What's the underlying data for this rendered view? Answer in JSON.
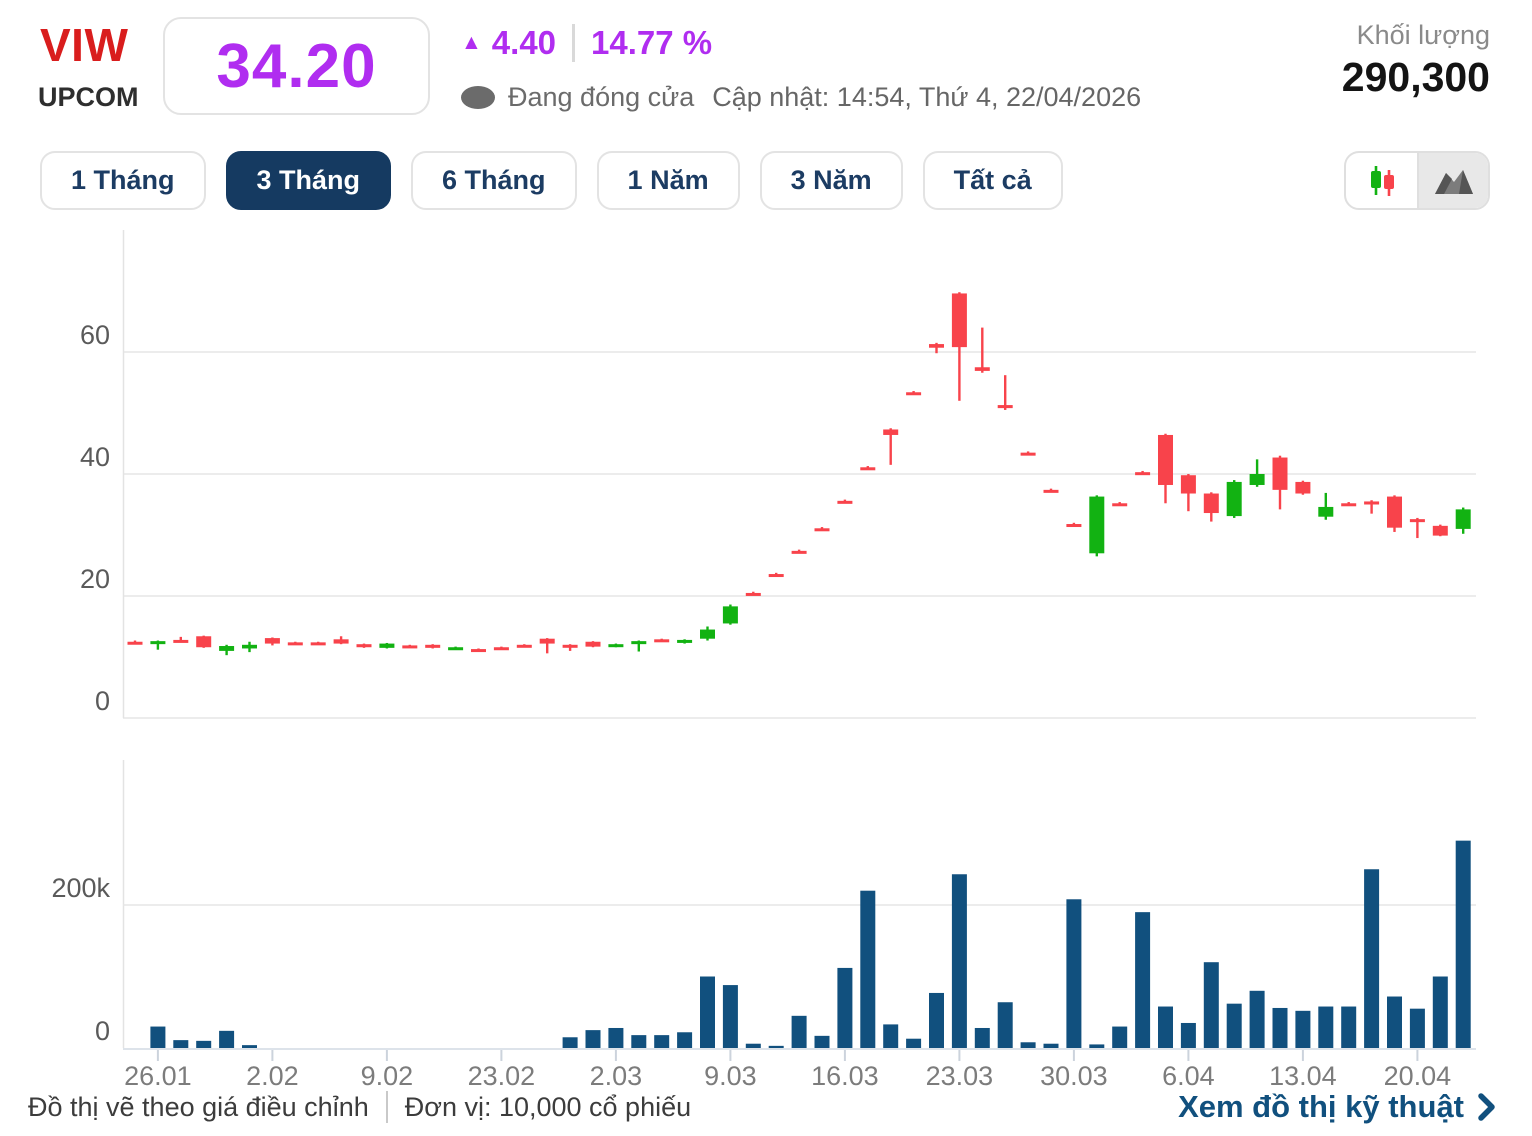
{
  "header": {
    "symbol": "VIW",
    "exchange": "UPCOM",
    "price": "34.20",
    "change_arrow": "▲",
    "change_value": "4.40",
    "change_percent": "14.77 %",
    "market_status": "Đang đóng cửa",
    "updated": "Cập nhật: 14:54, Thứ 4, 22/04/2026",
    "volume_label": "Khối lượng",
    "volume_value": "290,300"
  },
  "time_ranges": [
    {
      "label": "1 Tháng",
      "selected": false
    },
    {
      "label": "3 Tháng",
      "selected": true
    },
    {
      "label": "6 Tháng",
      "selected": false
    },
    {
      "label": "1 Năm",
      "selected": false
    },
    {
      "label": "3 Năm",
      "selected": false
    },
    {
      "label": "Tất cả",
      "selected": false
    }
  ],
  "footer": {
    "note": "Đồ thị vẽ theo giá điều chỉnh",
    "unit": "Đơn vị: 10,000 cổ phiếu",
    "link": "Xem đồ thị kỹ thuật"
  },
  "colors": {
    "up_green": "#12b212",
    "down_red": "#f8434b",
    "volume_bar": "#11507e",
    "accent_purple": "#b02df0",
    "brand_red": "#d91d1d",
    "navy": "#1c3c63",
    "grid": "#e6e6e6"
  },
  "chart_data": {
    "type": "candlestick+volume",
    "title": "VIW 3 Tháng price chart",
    "price_axis": {
      "ticks": [
        0,
        20,
        40,
        60
      ],
      "ylim": [
        0,
        80
      ]
    },
    "volume_axis": {
      "ticks": [
        {
          "v": 0,
          "label": "0"
        },
        {
          "v": 200,
          "label": "200k"
        }
      ],
      "unit": "k shares"
    },
    "x_ticks": [
      {
        "i": 1,
        "label": "26.01"
      },
      {
        "i": 6,
        "label": "2.02"
      },
      {
        "i": 11,
        "label": "9.02"
      },
      {
        "i": 16,
        "label": "23.02"
      },
      {
        "i": 21,
        "label": "2.03"
      },
      {
        "i": 26,
        "label": "9.03"
      },
      {
        "i": 31,
        "label": "16.03"
      },
      {
        "i": 36,
        "label": "23.03"
      },
      {
        "i": 41,
        "label": "30.03"
      },
      {
        "i": 46,
        "label": "6.04"
      },
      {
        "i": 51,
        "label": "13.04"
      },
      {
        "i": 56,
        "label": "20.04"
      }
    ],
    "candles": [
      [
        12.5,
        12.7,
        12.4,
        12.4
      ],
      [
        12.3,
        12.7,
        11.2,
        12.6
      ],
      [
        12.8,
        13.3,
        12.5,
        12.6
      ],
      [
        13.4,
        13.5,
        11.5,
        11.6
      ],
      [
        11.0,
        12.0,
        10.3,
        11.8
      ],
      [
        11.4,
        12.5,
        10.8,
        12.0
      ],
      [
        13.1,
        13.2,
        11.9,
        12.2
      ],
      [
        12.4,
        12.5,
        12.3,
        12.3
      ],
      [
        12.4,
        12.5,
        12.3,
        12.3
      ],
      [
        12.9,
        13.4,
        12.1,
        12.2
      ],
      [
        12.1,
        12.2,
        11.5,
        11.6
      ],
      [
        11.5,
        12.3,
        11.4,
        12.2
      ],
      [
        11.9,
        12.0,
        11.8,
        11.8
      ],
      [
        12.0,
        12.1,
        11.4,
        11.5
      ],
      [
        11.4,
        11.7,
        11.3,
        11.6
      ],
      [
        11.3,
        11.4,
        11.2,
        11.2
      ],
      [
        11.6,
        11.7,
        11.5,
        11.5
      ],
      [
        12.0,
        12.1,
        11.9,
        11.9
      ],
      [
        13.0,
        13.1,
        10.6,
        12.2
      ],
      [
        12.0,
        12.1,
        11.0,
        11.8
      ],
      [
        12.5,
        12.6,
        11.6,
        11.7
      ],
      [
        11.7,
        12.2,
        11.6,
        12.1
      ],
      [
        12.3,
        12.7,
        10.9,
        12.6
      ],
      [
        12.9,
        13.0,
        12.7,
        12.7
      ],
      [
        12.6,
        12.9,
        12.2,
        12.8
      ],
      [
        13.0,
        15.0,
        12.7,
        14.5
      ],
      [
        15.5,
        18.6,
        15.3,
        18.3
      ],
      [
        20.5,
        20.7,
        20.3,
        20.4
      ],
      [
        23.6,
        23.8,
        23.4,
        23.5
      ],
      [
        27.4,
        27.6,
        27.2,
        27.3
      ],
      [
        31.1,
        31.3,
        30.9,
        31.0
      ],
      [
        35.6,
        35.8,
        35.4,
        35.5
      ],
      [
        41.1,
        41.3,
        40.9,
        41.0
      ],
      [
        47.3,
        47.5,
        41.5,
        46.4
      ],
      [
        53.4,
        53.6,
        53.1,
        53.2
      ],
      [
        61.3,
        61.5,
        59.8,
        60.7
      ],
      [
        69.6,
        69.8,
        52.0,
        60.8
      ],
      [
        57.5,
        64.0,
        56.6,
        56.9
      ],
      [
        51.3,
        56.2,
        50.5,
        50.8
      ],
      [
        43.5,
        43.7,
        43.2,
        43.3
      ],
      [
        37.4,
        37.6,
        37.1,
        37.2
      ],
      [
        31.8,
        32.0,
        31.5,
        31.6
      ],
      [
        27.0,
        36.5,
        26.5,
        36.3
      ],
      [
        35.2,
        35.4,
        34.9,
        35.0
      ],
      [
        40.3,
        40.5,
        40.0,
        40.1
      ],
      [
        46.4,
        46.6,
        35.2,
        38.2
      ],
      [
        39.8,
        40.0,
        33.9,
        36.8
      ],
      [
        36.8,
        37.0,
        32.2,
        33.6
      ],
      [
        33.1,
        39.0,
        32.8,
        38.7
      ],
      [
        38.2,
        42.4,
        37.9,
        40.0
      ],
      [
        42.7,
        43.0,
        34.2,
        37.4
      ],
      [
        38.7,
        38.9,
        36.6,
        36.8
      ],
      [
        33.0,
        36.9,
        32.5,
        34.6
      ],
      [
        35.2,
        35.4,
        34.9,
        35.0
      ],
      [
        35.5,
        35.7,
        33.5,
        35.0
      ],
      [
        36.3,
        36.5,
        30.5,
        31.2
      ],
      [
        32.6,
        32.8,
        29.5,
        32.2
      ],
      [
        31.5,
        31.7,
        29.8,
        29.9
      ],
      [
        31.0,
        34.5,
        30.2,
        34.2
      ]
    ],
    "volumes_k": [
      0,
      30,
      11,
      10,
      24,
      4,
      0,
      0,
      0,
      0,
      0,
      0,
      0,
      0,
      0,
      0,
      0,
      0,
      0,
      15,
      25,
      28,
      18,
      18,
      22,
      100,
      88,
      6,
      3,
      45,
      17,
      112,
      220,
      33,
      13,
      77,
      243,
      28,
      64,
      8,
      6,
      208,
      5,
      30,
      190,
      58,
      35,
      120,
      62,
      80,
      56,
      52,
      58,
      58,
      250,
      72,
      55,
      100,
      290
    ]
  }
}
